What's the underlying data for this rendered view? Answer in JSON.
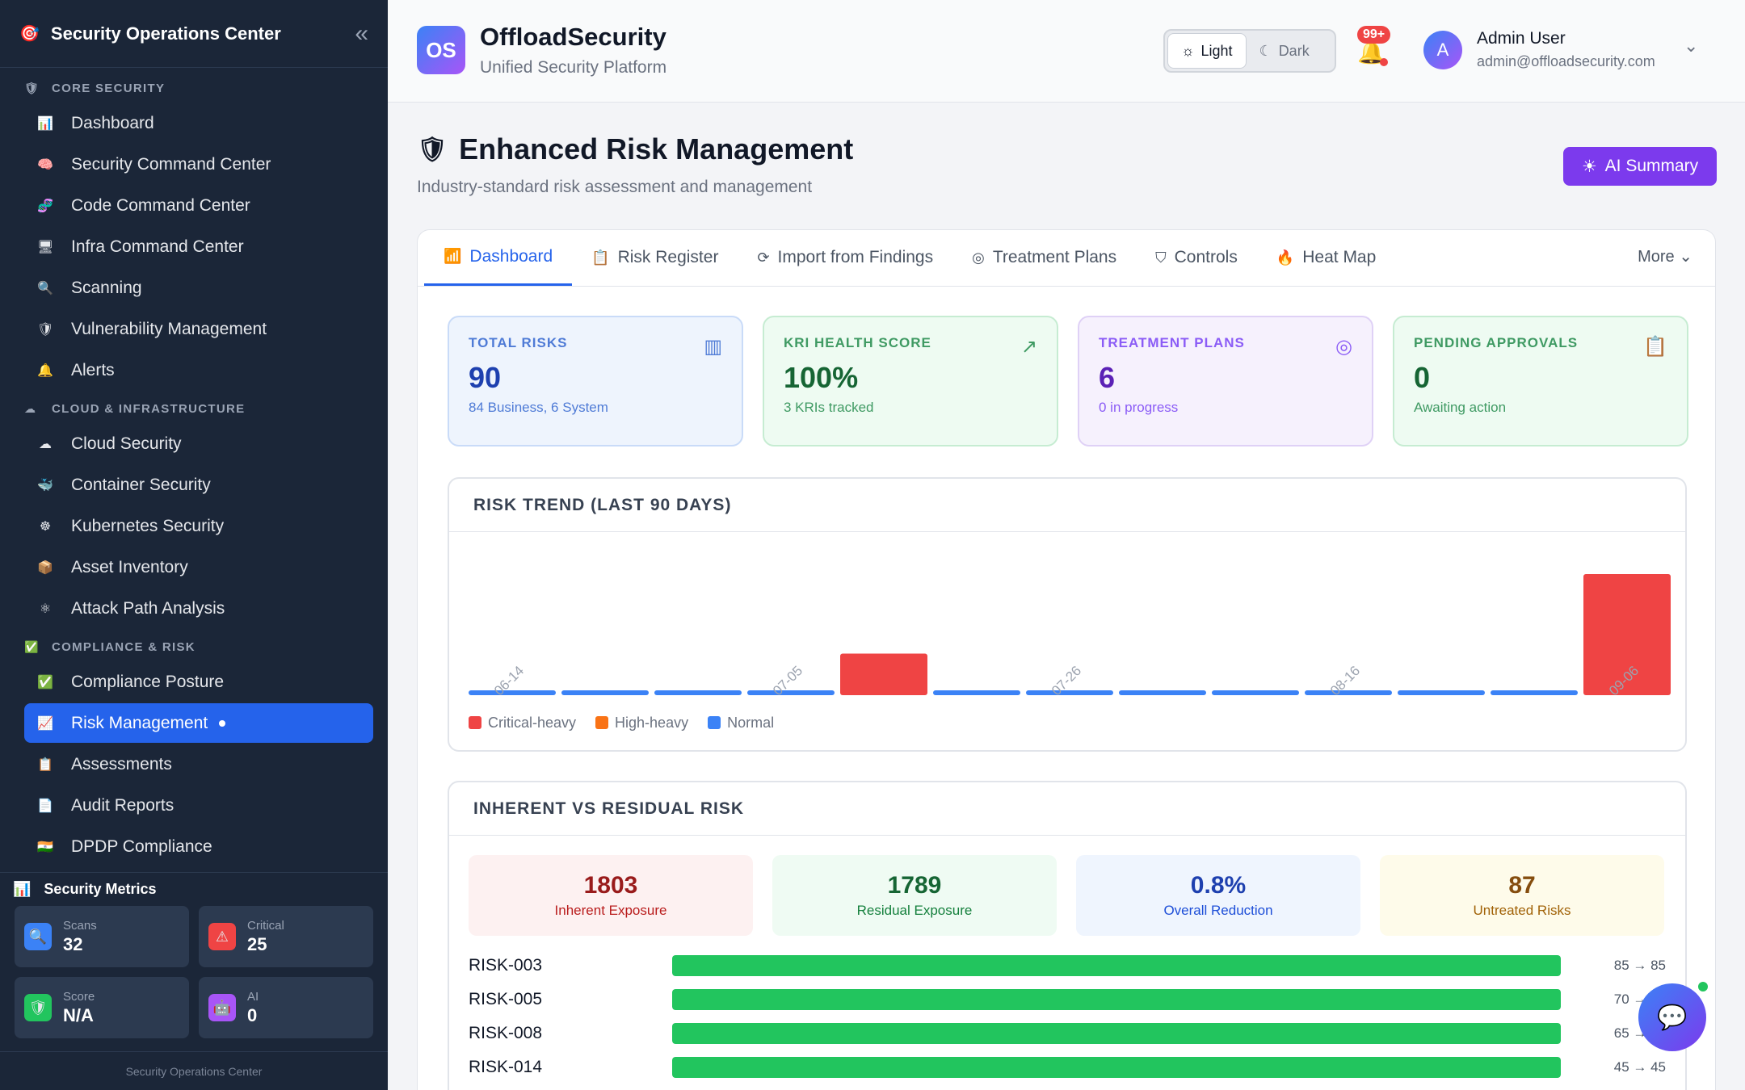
{
  "sidebar": {
    "title": "Security Operations Center",
    "sections": [
      {
        "label": "CORE SECURITY",
        "icon": "🛡",
        "items": [
          {
            "label": "Dashboard",
            "icon": "📊"
          },
          {
            "label": "Security Command Center",
            "icon": "🧠"
          },
          {
            "label": "Code Command Center",
            "icon": "🧬"
          },
          {
            "label": "Infra Command Center",
            "icon": "🖥"
          },
          {
            "label": "Scanning",
            "icon": "🔍"
          },
          {
            "label": "Vulnerability Management",
            "icon": "🛡"
          },
          {
            "label": "Alerts",
            "icon": "🔔"
          }
        ]
      },
      {
        "label": "CLOUD & INFRASTRUCTURE",
        "icon": "☁",
        "items": [
          {
            "label": "Cloud Security",
            "icon": "☁"
          },
          {
            "label": "Container Security",
            "icon": "🐳"
          },
          {
            "label": "Kubernetes Security",
            "icon": "☸"
          },
          {
            "label": "Asset Inventory",
            "icon": "📦"
          },
          {
            "label": "Attack Path Analysis",
            "icon": "⚛"
          }
        ]
      },
      {
        "label": "COMPLIANCE & RISK",
        "icon": "✅",
        "items": [
          {
            "label": "Compliance Posture",
            "icon": "✅"
          },
          {
            "label": "Risk Management",
            "icon": "📈",
            "active": true
          },
          {
            "label": "Assessments",
            "icon": "📋"
          },
          {
            "label": "Audit Reports",
            "icon": "📄"
          },
          {
            "label": "DPDP Compliance",
            "icon": "🇮🇳"
          }
        ]
      }
    ],
    "metrics": {
      "title": "Security Metrics",
      "cards": [
        {
          "label": "Scans",
          "value": "32",
          "icon": "🔍",
          "color": "#3b82f6"
        },
        {
          "label": "Critical",
          "value": "25",
          "icon": "⚠",
          "color": "#ef4444"
        },
        {
          "label": "Score",
          "value": "N/A",
          "icon": "🛡",
          "color": "#22c55e"
        },
        {
          "label": "AI",
          "value": "0",
          "icon": "🤖",
          "color": "#a855f7"
        }
      ]
    },
    "footer": "Security Operations Center"
  },
  "topbar": {
    "logo_text": "OS",
    "brand": "OffloadSecurity",
    "tagline": "Unified Security Platform",
    "theme_light": "Light",
    "theme_dark": "Dark",
    "notif_badge": "99+",
    "avatar_letter": "A",
    "user_name": "Admin User",
    "user_email": "admin@offloadsecurity.com"
  },
  "page": {
    "title": "Enhanced Risk Management",
    "subtitle": "Industry-standard risk assessment and management",
    "ai_button": "AI Summary"
  },
  "tabs": [
    {
      "label": "Dashboard",
      "icon": "📶",
      "active": true
    },
    {
      "label": "Risk Register",
      "icon": "📋"
    },
    {
      "label": "Import from Findings",
      "icon": "⟳"
    },
    {
      "label": "Treatment Plans",
      "icon": "◎"
    },
    {
      "label": "Controls",
      "icon": "⛉"
    },
    {
      "label": "Heat Map",
      "icon": "🔥"
    }
  ],
  "more_label": "More",
  "stats": [
    {
      "label": "TOTAL RISKS",
      "value": "90",
      "sub": "84 Business, 6 System",
      "icon": "▥"
    },
    {
      "label": "KRI HEALTH SCORE",
      "value": "100%",
      "sub": "3 KRIs tracked",
      "icon": "↗"
    },
    {
      "label": "TREATMENT PLANS",
      "value": "6",
      "sub": "0 in progress",
      "icon": "◎"
    },
    {
      "label": "PENDING APPROVALS",
      "value": "0",
      "sub": "Awaiting action",
      "icon": "📋"
    }
  ],
  "trend": {
    "title": "RISK TREND (LAST 90 DAYS)",
    "legend": [
      {
        "label": "Critical-heavy",
        "color": "#ef4444"
      },
      {
        "label": "High-heavy",
        "color": "#f97316"
      },
      {
        "label": "Normal",
        "color": "#3b82f6"
      }
    ]
  },
  "chart_data": {
    "type": "bar",
    "categories": [
      "06-14",
      "",
      "",
      "07-05",
      "",
      "",
      "07-26",
      "",
      "",
      "08-16",
      "",
      "",
      "09-06"
    ],
    "values": [
      1,
      1,
      1,
      1,
      11,
      1,
      1,
      1,
      1,
      1,
      1,
      1,
      32
    ],
    "levels": [
      "Normal",
      "Normal",
      "Normal",
      "Normal",
      "Critical-heavy",
      "Normal",
      "Normal",
      "Normal",
      "Normal",
      "Normal",
      "Normal",
      "Normal",
      "Critical-heavy"
    ],
    "title": "RISK TREND (LAST 90 DAYS)",
    "xlabel": "",
    "ylabel": ""
  },
  "residual": {
    "title": "INHERENT VS RESIDUAL RISK",
    "boxes": [
      {
        "value": "1803",
        "label": "Inherent Exposure"
      },
      {
        "value": "1789",
        "label": "Residual Exposure"
      },
      {
        "value": "0.8%",
        "label": "Overall Reduction"
      },
      {
        "value": "87",
        "label": "Untreated Risks"
      }
    ],
    "rows": [
      {
        "id": "RISK-003",
        "range": "85 → 85",
        "fill": 100
      },
      {
        "id": "RISK-005",
        "range": "70 → 70",
        "fill": 100
      },
      {
        "id": "RISK-008",
        "range": "65 → 65",
        "fill": 100
      },
      {
        "id": "RISK-014",
        "range": "45 → 45",
        "fill": 100
      }
    ]
  }
}
